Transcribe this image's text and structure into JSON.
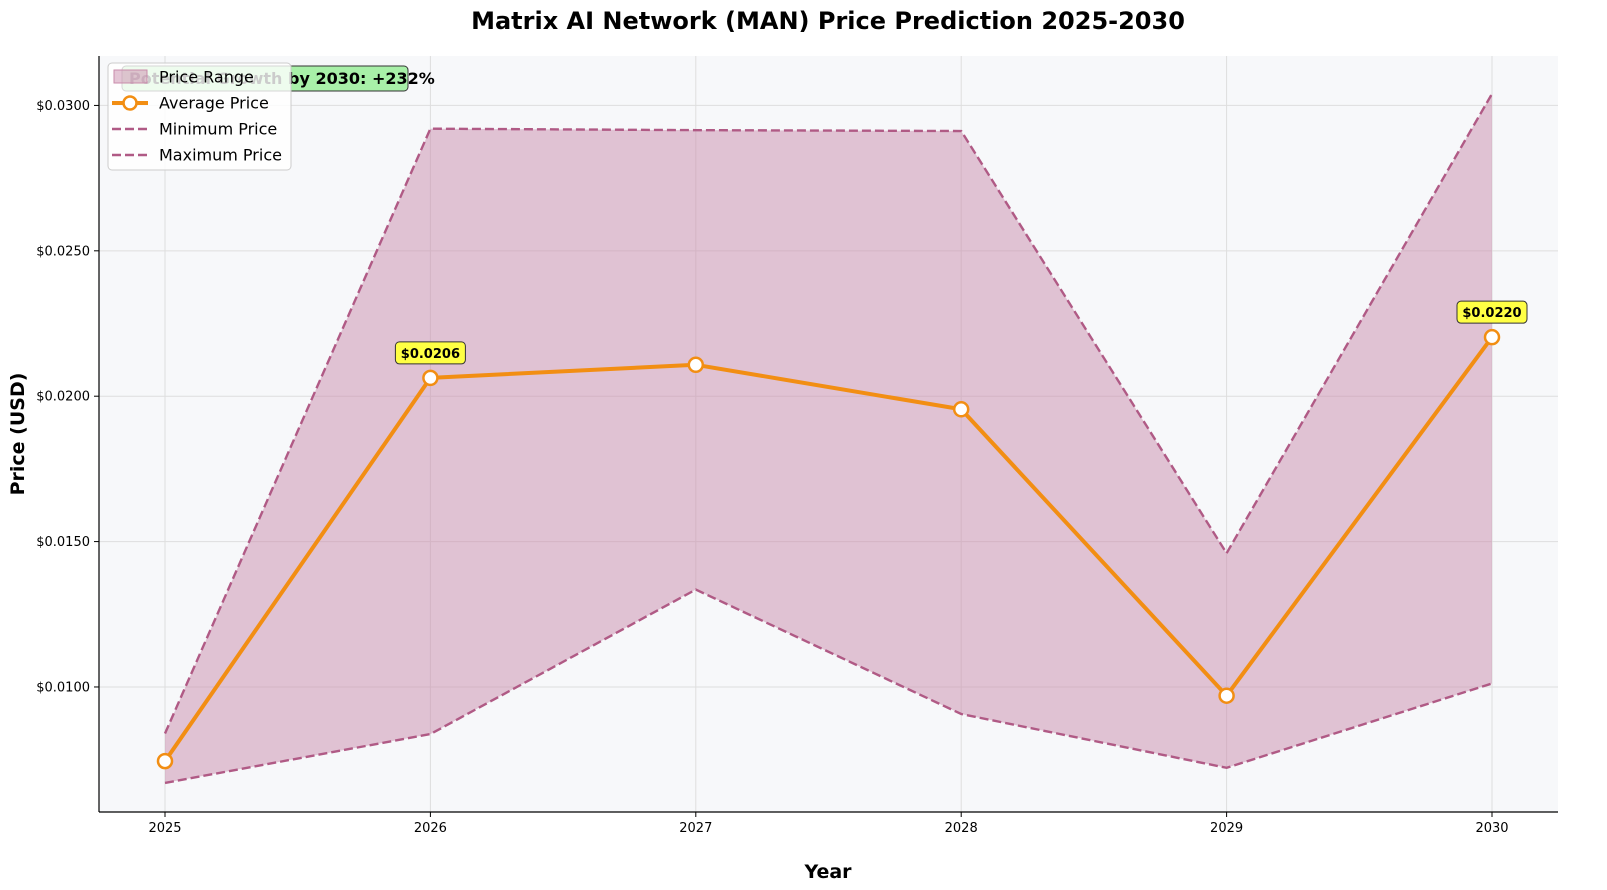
{
  "chart_data": {
    "type": "line",
    "title": "Matrix AI Network (MAN) Price Prediction 2025-2030",
    "xlabel": "Year",
    "ylabel": "Price (USD)",
    "x": [
      "2025",
      "2026",
      "2027",
      "2028",
      "2029",
      "2030"
    ],
    "ylim": [
      0.0057,
      0.0317
    ],
    "y_ticks": [
      0.01,
      0.015,
      0.02,
      0.025,
      0.03
    ],
    "y_tick_labels": [
      "$0.0100",
      "$0.0150",
      "$0.0200",
      "$0.0250",
      "$0.0300"
    ],
    "grid": true,
    "legend_position": "top-left",
    "series": [
      {
        "name": "Price Range",
        "kind": "band",
        "color": "#c98bab"
      },
      {
        "name": "Average Price",
        "kind": "line",
        "color": "#f28e13",
        "values": [
          0.00745,
          0.02063,
          0.02108,
          0.01955,
          0.0097,
          0.02203
        ]
      },
      {
        "name": "Minimum Price",
        "kind": "dashed",
        "color": "#b05a85",
        "values": [
          0.0067,
          0.00838,
          0.01335,
          0.00907,
          0.00722,
          0.01012
        ]
      },
      {
        "name": "Maximum Price",
        "kind": "dashed",
        "color": "#b05a85",
        "values": [
          0.0084,
          0.0292,
          0.02915,
          0.02912,
          0.0146,
          0.0304
        ]
      }
    ],
    "annotations": [
      {
        "x": "2026",
        "value": 0.02063,
        "text": "$0.0206"
      },
      {
        "x": "2030",
        "value": 0.02203,
        "text": "$0.0220"
      }
    ],
    "growth_note": "Potential Growth by 2030: +232%",
    "colors": {
      "plot_bg": "#f7f8fa",
      "grid": "#dedede",
      "annotation_bg": "#ffff44",
      "growth_bg": "#a8f0a8"
    }
  }
}
